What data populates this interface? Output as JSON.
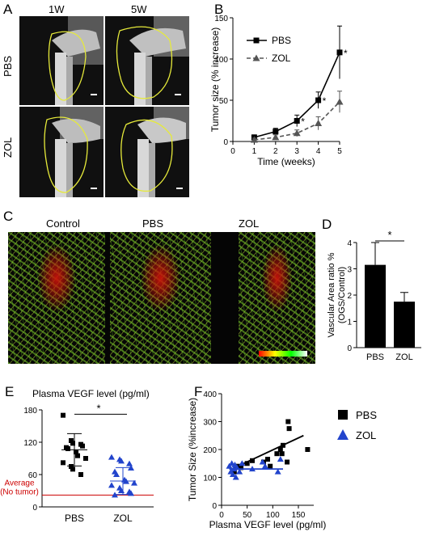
{
  "panels": {
    "A": "A",
    "B": "B",
    "C": "C",
    "D": "D",
    "E": "E",
    "F": "F"
  },
  "panelA": {
    "col_labels": [
      "1W",
      "5W"
    ],
    "row_labels": [
      "PBS",
      "ZOL"
    ]
  },
  "panelC": {
    "labels": [
      "Control",
      "PBS",
      "ZOL"
    ]
  },
  "chart_data": [
    {
      "id": "B",
      "type": "line",
      "xlabel": "Time (weeks)",
      "ylabel": "Tumor size (% increase)",
      "x": [
        1,
        2,
        3,
        4,
        5
      ],
      "xlim": [
        0,
        5
      ],
      "ylim": [
        0,
        150
      ],
      "xticks": [
        "0",
        "1",
        "2",
        "3",
        "4",
        "5"
      ],
      "yticks": [
        "0",
        "50",
        "100",
        "150"
      ],
      "series": [
        {
          "name": "PBS",
          "values": [
            5,
            12,
            25,
            50,
            108
          ],
          "err": [
            3,
            4,
            7,
            10,
            32
          ],
          "color": "#000000",
          "marker": "square",
          "dash": "solid"
        },
        {
          "name": "ZOL",
          "values": [
            2,
            5,
            10,
            22,
            48
          ],
          "err": [
            2,
            3,
            4,
            8,
            13
          ],
          "color": "#555555",
          "marker": "triangle",
          "dash": "dashed"
        }
      ],
      "annotations": [
        "*",
        "*",
        "*"
      ],
      "legend": "top-left"
    },
    {
      "id": "D",
      "type": "bar",
      "ylabel": "Vascular Area ratio %\n(OGS/Control)",
      "categories": [
        "PBS",
        "ZOL"
      ],
      "values": [
        3.15,
        1.75
      ],
      "err": [
        0.85,
        0.35
      ],
      "ylim": [
        0,
        4
      ],
      "yticks": [
        "0",
        "1",
        "2",
        "3",
        "4"
      ],
      "annotations": [
        "*"
      ]
    },
    {
      "id": "E",
      "type": "scatter",
      "title": "Plasma VEGF level (pg/ml)",
      "categories": [
        "PBS",
        "ZOL"
      ],
      "ylim": [
        0,
        180
      ],
      "yticks": [
        "0",
        "60",
        "120",
        "180"
      ],
      "series": [
        {
          "name": "PBS",
          "values": [
            170,
            123,
            118,
            116,
            113,
            110,
            108,
            102,
            95,
            90,
            82,
            75,
            70,
            60
          ],
          "mean": 106,
          "sd": 30,
          "color": "#000000",
          "marker": "square"
        },
        {
          "name": "ZOL",
          "values": [
            92,
            88,
            85,
            80,
            72,
            65,
            60,
            50,
            47,
            44,
            40,
            35,
            30,
            28,
            25,
            22
          ],
          "mean": 48,
          "sd": 25,
          "color": "#2244cc",
          "marker": "triangle"
        }
      ],
      "reference_line": {
        "value": 22,
        "label": "Average\n(No tumor)",
        "color": "#cc0000"
      },
      "annotations": [
        "*"
      ]
    },
    {
      "id": "F",
      "type": "scatter",
      "xlabel": "Plasma VEGF level (pg/ml)",
      "ylabel": "Tumor Size (%increase)",
      "xlim": [
        0,
        180
      ],
      "ylim": [
        0,
        400
      ],
      "xticks": [
        "0",
        "50",
        "100",
        "150"
      ],
      "yticks": [
        "0",
        "100",
        "200",
        "300",
        "400"
      ],
      "series": [
        {
          "name": "PBS",
          "color": "#000000",
          "marker": "square",
          "x": [
            25,
            32,
            38,
            50,
            60,
            82,
            90,
            95,
            108,
            115,
            118,
            120,
            128,
            130,
            132,
            168
          ],
          "y": [
            120,
            140,
            135,
            150,
            160,
            155,
            165,
            140,
            185,
            200,
            185,
            215,
            155,
            300,
            275,
            200
          ],
          "fit": [
            [
              20,
              130
            ],
            [
              160,
              250
            ]
          ]
        },
        {
          "name": "ZOL",
          "color": "#2244cc",
          "marker": "triangle",
          "x": [
            15,
            18,
            20,
            22,
            24,
            26,
            28,
            30,
            35,
            40,
            60,
            80,
            85,
            110,
            115
          ],
          "y": [
            140,
            120,
            150,
            110,
            130,
            145,
            100,
            135,
            120,
            150,
            130,
            155,
            140,
            120,
            165
          ],
          "fit": [
            [
              15,
              130
            ],
            [
              120,
              130
            ]
          ]
        }
      ],
      "legend": "right"
    }
  ]
}
